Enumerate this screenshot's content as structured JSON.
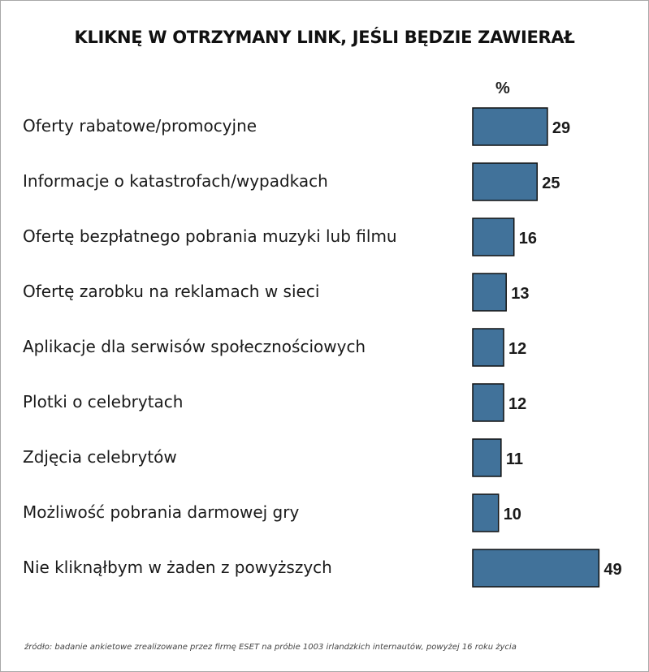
{
  "chart_data": {
    "type": "bar",
    "orientation": "horizontal",
    "title": "KLIKNĘ W OTRZYMANY LINK, JEŚLI BĘDZIE ZAWIERAŁ",
    "unit_label": "%",
    "categories": [
      "Oferty rabatowe/promocyjne",
      "Informacje o katastrofach/wypadkach",
      "Ofertę bezpłatnego pobrania muzyki lub filmu",
      "Ofertę zarobku na reklamach w sieci",
      "Aplikacje dla serwisów społecznościowych",
      "Plotki o celebrytach",
      "Zdjęcia celebrytów",
      "Możliwość pobrania darmowej gry",
      "Nie kliknąłbym w żaden z powyższych"
    ],
    "values": [
      29,
      25,
      16,
      13,
      12,
      12,
      11,
      10,
      49
    ],
    "grid": false,
    "bar_color": "#41729a",
    "bar_border_color": "#111111"
  },
  "source": "źródło:  badanie ankietowe zrealizowane przez firmę ESET na próbie 1003 irlandzkich internautów, powyżej 16 roku życia"
}
